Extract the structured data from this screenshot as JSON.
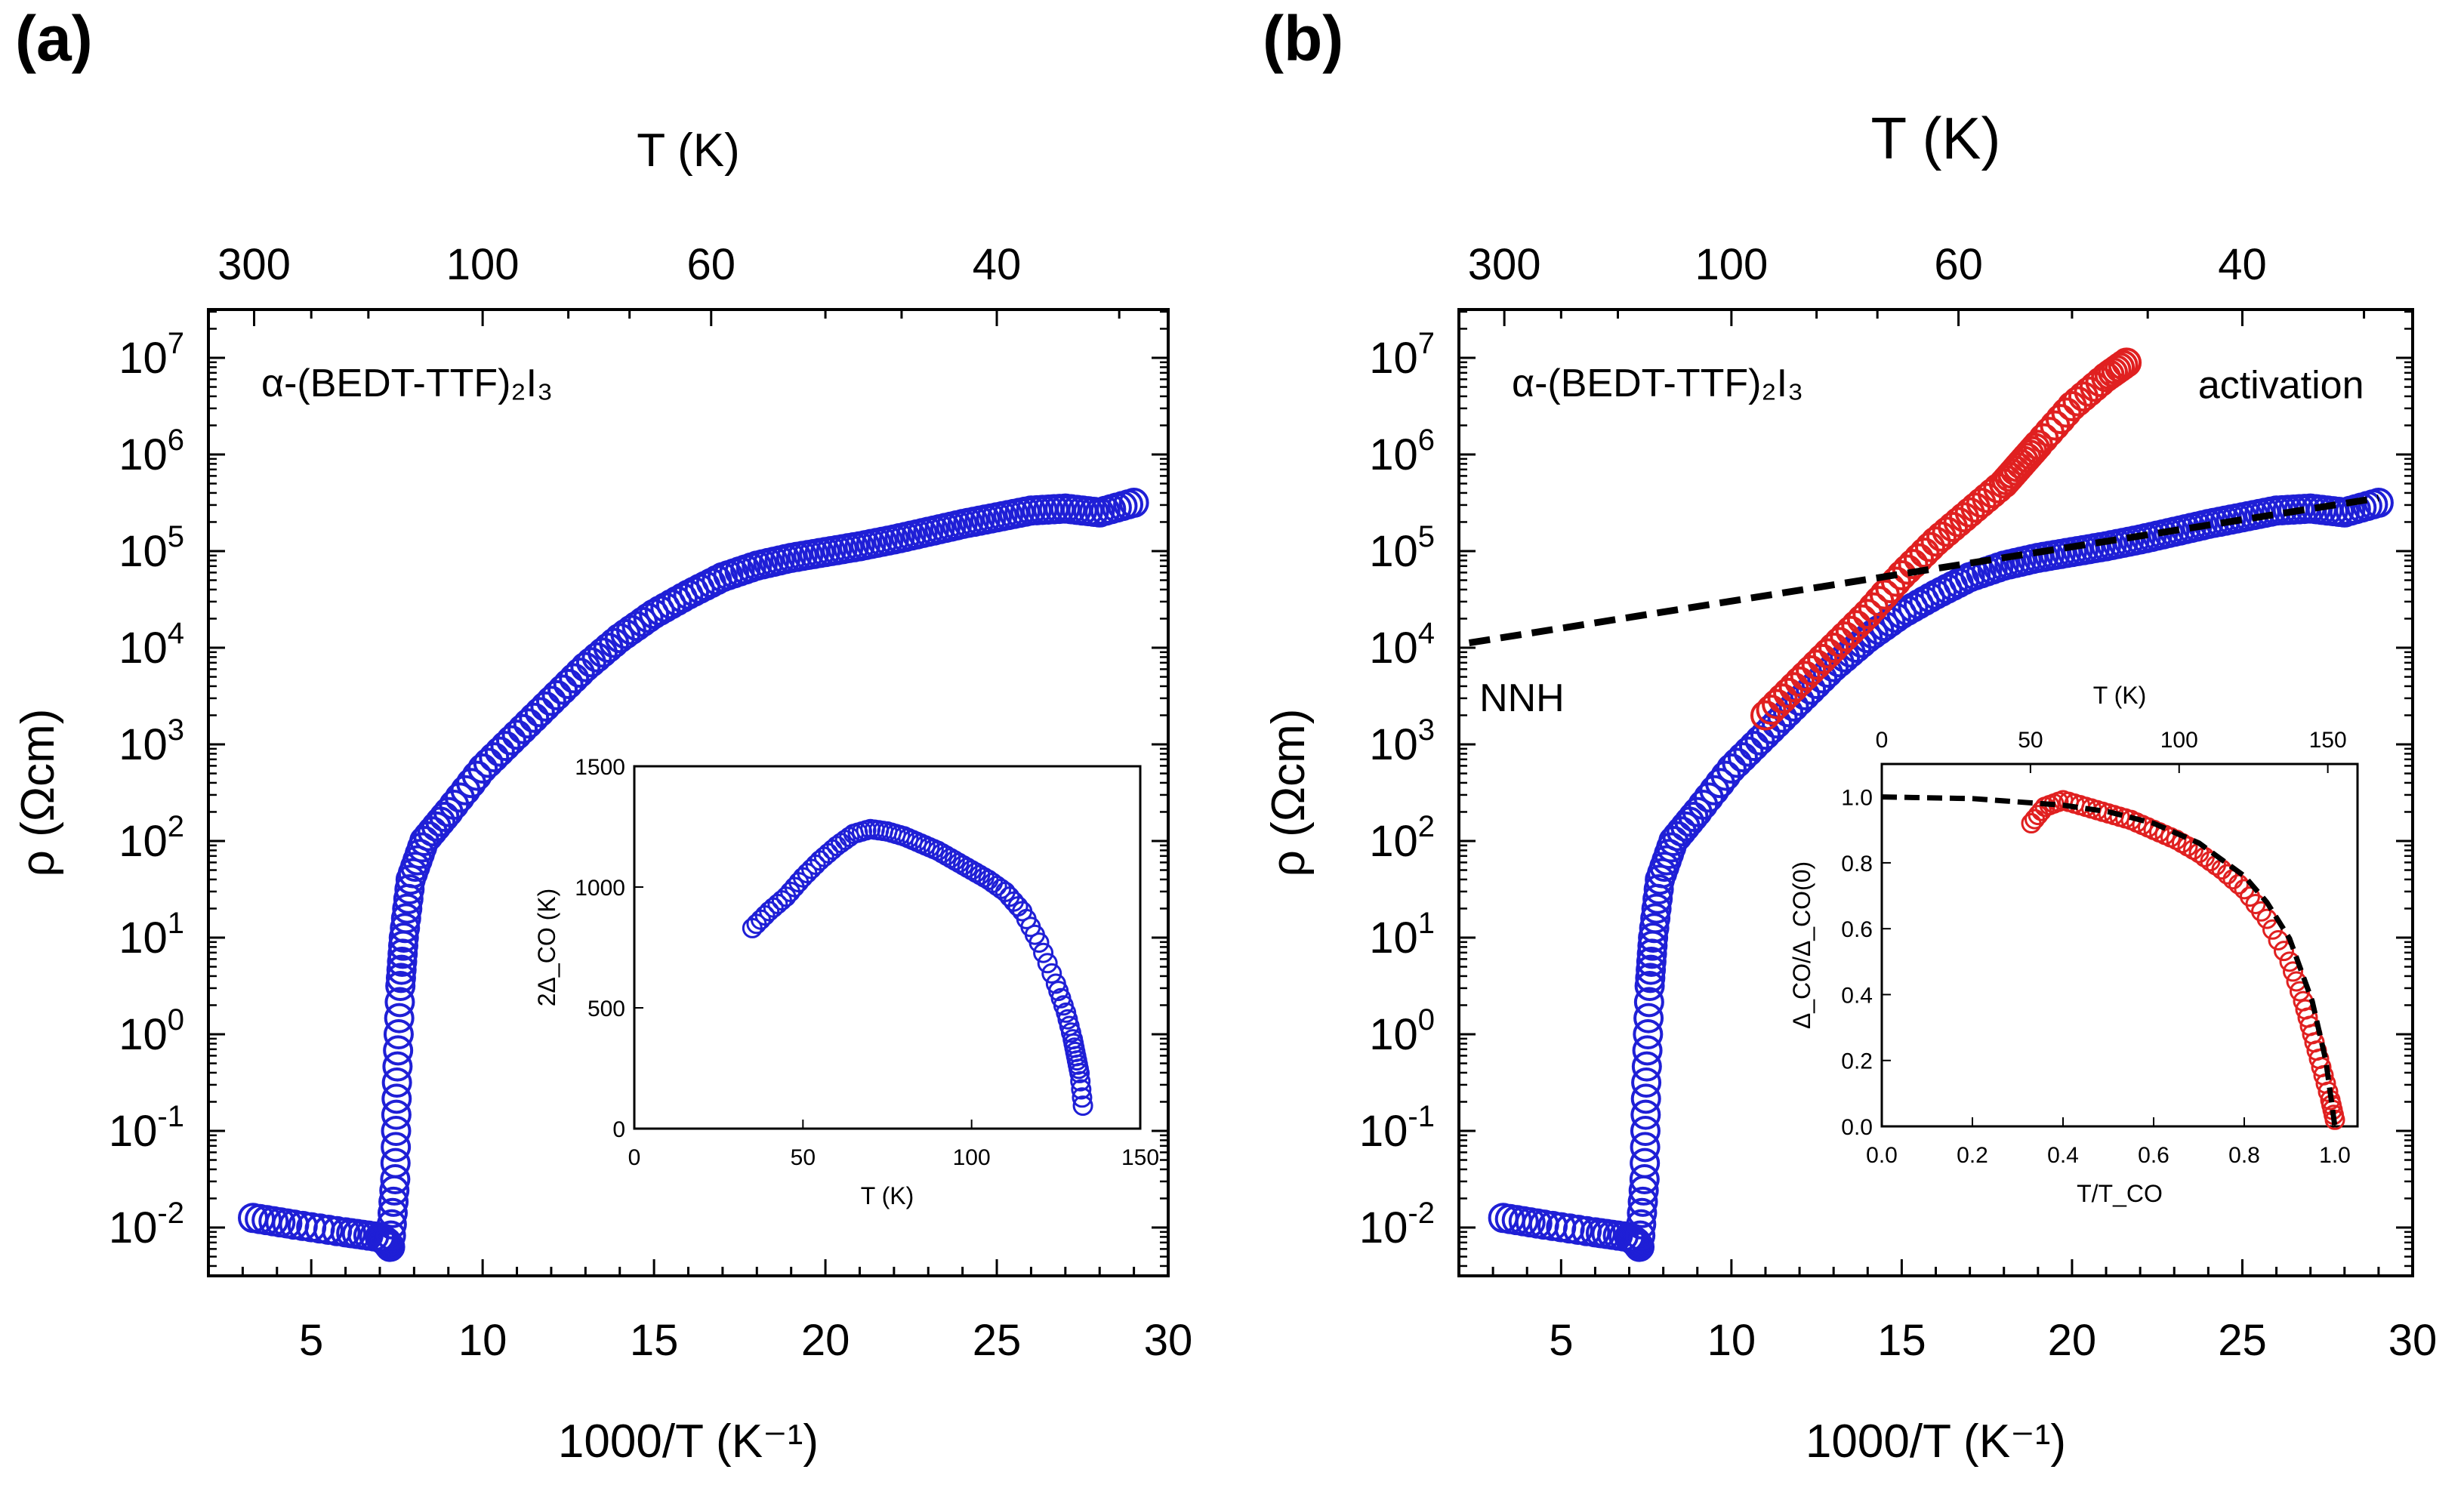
{
  "chart_data": [
    {
      "panel": "(a)",
      "type": "scatter",
      "annotation": "α-(BEDT-TTF)₂I₃",
      "xlabel": "1000/T (K⁻¹)",
      "ylabel": "ρ (Ωcm)",
      "top_xlabel": "T (K)",
      "xlim": [
        2,
        30
      ],
      "ylim_log10": [
        -2.5,
        7.5
      ],
      "yscale": "log",
      "x_ticks": [
        5,
        10,
        15,
        20,
        25,
        30
      ],
      "y_ticks": [
        "10-2",
        "10-1",
        "100",
        "101",
        "102",
        "103",
        "104",
        "105",
        "106",
        "107"
      ],
      "top_ticks": [
        {
          "label": "300",
          "T": 300
        },
        {
          "label": "100",
          "T": 100
        },
        {
          "label": "60",
          "T": 60
        },
        {
          "label": "40",
          "T": 40
        }
      ],
      "series": [
        {
          "name": "ρ (blue)",
          "color": "#1f1fd6",
          "marker": "open-circle",
          "curve_knots": [
            [
              3.3,
              -1.9
            ],
            [
              4.5,
              -1.97
            ],
            [
              6,
              -2.05
            ],
            [
              7.0,
              -2.1
            ],
            [
              7.2,
              -2.15
            ],
            [
              7.3,
              -2.2
            ],
            [
              7.45,
              -1.5
            ],
            [
              7.5,
              -0.5
            ],
            [
              7.6,
              0.5
            ],
            [
              7.7,
              1.0
            ],
            [
              7.9,
              1.6
            ],
            [
              8.3,
              2.0
            ],
            [
              9,
              2.3
            ],
            [
              10,
              2.75
            ],
            [
              11,
              3.1
            ],
            [
              12,
              3.45
            ],
            [
              13,
              3.8
            ],
            [
              14,
              4.1
            ],
            [
              15,
              4.35
            ],
            [
              16,
              4.55
            ],
            [
              17,
              4.73
            ],
            [
              18,
              4.85
            ],
            [
              19,
              4.93
            ],
            [
              20,
              4.99
            ],
            [
              21,
              5.05
            ],
            [
              22,
              5.12
            ],
            [
              23,
              5.2
            ],
            [
              24,
              5.28
            ],
            [
              25,
              5.35
            ],
            [
              26,
              5.42
            ],
            [
              27,
              5.44
            ],
            [
              28,
              5.4
            ],
            [
              29,
              5.5
            ]
          ]
        }
      ],
      "inset": {
        "xlabel": "T (K)",
        "ylabel": "2Δ_CO (K)",
        "xlim": [
          0,
          150
        ],
        "ylim": [
          0,
          1500
        ],
        "x_ticks": [
          0,
          50,
          100,
          150
        ],
        "y_ticks": [
          0,
          500,
          1000,
          1500
        ],
        "series_knots": [
          [
            35,
            830
          ],
          [
            40,
            900
          ],
          [
            45,
            960
          ],
          [
            50,
            1040
          ],
          [
            55,
            1110
          ],
          [
            60,
            1170
          ],
          [
            65,
            1220
          ],
          [
            70,
            1240
          ],
          [
            75,
            1230
          ],
          [
            80,
            1210
          ],
          [
            85,
            1180
          ],
          [
            90,
            1150
          ],
          [
            95,
            1110
          ],
          [
            100,
            1070
          ],
          [
            105,
            1030
          ],
          [
            110,
            980
          ],
          [
            115,
            900
          ],
          [
            120,
            770
          ],
          [
            125,
            600
          ],
          [
            128,
            480
          ],
          [
            130,
            370
          ],
          [
            131,
            300
          ],
          [
            132,
            230
          ],
          [
            133,
            95
          ]
        ]
      }
    },
    {
      "panel": "(b)",
      "type": "scatter",
      "annotation": "α-(BEDT-TTF)₂I₃",
      "label_activation": "activation",
      "label_nnh": "NNH",
      "xlabel": "1000/T (K⁻¹)",
      "ylabel": "ρ (Ωcm)",
      "top_xlabel": "T (K)",
      "xlim": [
        2,
        30
      ],
      "ylim_log10": [
        -2.5,
        7.5
      ],
      "x_ticks": [
        5,
        10,
        15,
        20,
        25,
        30
      ],
      "y_ticks": [
        "10-2",
        "10-1",
        "100",
        "101",
        "102",
        "103",
        "104",
        "105",
        "106",
        "107"
      ],
      "top_ticks": [
        {
          "label": "300",
          "T": 300
        },
        {
          "label": "100",
          "T": 100
        },
        {
          "label": "60",
          "T": 60
        },
        {
          "label": "40",
          "T": 40
        }
      ],
      "series": [
        {
          "name": "ρ (blue)",
          "color": "#1f1fd6",
          "marker": "open-circle",
          "curve_knots": [
            [
              3.3,
              -1.9
            ],
            [
              4.5,
              -1.97
            ],
            [
              6,
              -2.05
            ],
            [
              7.0,
              -2.1
            ],
            [
              7.2,
              -2.15
            ],
            [
              7.3,
              -2.2
            ],
            [
              7.45,
              -1.5
            ],
            [
              7.5,
              -0.5
            ],
            [
              7.6,
              0.5
            ],
            [
              7.7,
              1.0
            ],
            [
              7.9,
              1.6
            ],
            [
              8.3,
              2.0
            ],
            [
              9,
              2.3
            ],
            [
              10,
              2.75
            ],
            [
              11,
              3.1
            ],
            [
              12,
              3.45
            ],
            [
              13,
              3.8
            ],
            [
              14,
              4.1
            ],
            [
              15,
              4.35
            ],
            [
              16,
              4.55
            ],
            [
              17,
              4.73
            ],
            [
              18,
              4.85
            ],
            [
              19,
              4.93
            ],
            [
              20,
              4.99
            ],
            [
              21,
              5.05
            ],
            [
              22,
              5.12
            ],
            [
              23,
              5.2
            ],
            [
              24,
              5.28
            ],
            [
              25,
              5.35
            ],
            [
              26,
              5.42
            ],
            [
              27,
              5.44
            ],
            [
              28,
              5.4
            ],
            [
              29,
              5.5
            ]
          ]
        },
        {
          "name": "activation (red)",
          "color": "#e02020",
          "marker": "open-circle",
          "curve_knots": [
            [
              11.0,
              3.3
            ],
            [
              12,
              3.65
            ],
            [
              13,
              4.0
            ],
            [
              14,
              4.35
            ],
            [
              15,
              4.75
            ],
            [
              16,
              5.1
            ],
            [
              17,
              5.4
            ],
            [
              18,
              5.7
            ],
            [
              18.5,
              5.9
            ],
            [
              19,
              6.1
            ],
            [
              20,
              6.5
            ],
            [
              21,
              6.8
            ],
            [
              21.6,
              6.95
            ]
          ]
        },
        {
          "name": "NNH fit",
          "color": "#000000",
          "style": "dashed",
          "points": [
            [
              2.3,
              4.05
            ],
            [
              29,
              5.55
            ]
          ]
        }
      ],
      "inset": {
        "xlabel": "T/T_CO",
        "ylabel": "Δ_CO/Δ_CO(0)",
        "top_xlabel": "T (K)",
        "xlim": [
          0,
          1.05
        ],
        "ylim": [
          0,
          1.1
        ],
        "x_ticks": [
          0.0,
          0.2,
          0.4,
          0.6,
          0.8,
          1.0
        ],
        "y_ticks": [
          0.0,
          0.2,
          0.4,
          0.6,
          0.8,
          1.0
        ],
        "top_ticks": [
          0,
          50,
          100,
          150
        ],
        "series_knots": [
          [
            0.33,
            0.92
          ],
          [
            0.36,
            0.97
          ],
          [
            0.4,
            0.99
          ],
          [
            0.45,
            0.97
          ],
          [
            0.5,
            0.95
          ],
          [
            0.55,
            0.93
          ],
          [
            0.6,
            0.9
          ],
          [
            0.65,
            0.87
          ],
          [
            0.7,
            0.83
          ],
          [
            0.75,
            0.78
          ],
          [
            0.8,
            0.72
          ],
          [
            0.85,
            0.63
          ],
          [
            0.9,
            0.5
          ],
          [
            0.93,
            0.38
          ],
          [
            0.95,
            0.28
          ],
          [
            0.97,
            0.18
          ],
          [
            0.99,
            0.08
          ],
          [
            1.0,
            0.02
          ]
        ],
        "fit_knots": [
          [
            0.0,
            1.0
          ],
          [
            0.2,
            0.995
          ],
          [
            0.4,
            0.975
          ],
          [
            0.5,
            0.955
          ],
          [
            0.6,
            0.92
          ],
          [
            0.7,
            0.86
          ],
          [
            0.8,
            0.76
          ],
          [
            0.85,
            0.68
          ],
          [
            0.9,
            0.57
          ],
          [
            0.95,
            0.38
          ],
          [
            0.98,
            0.2
          ],
          [
            1.0,
            0.0
          ]
        ]
      }
    }
  ]
}
